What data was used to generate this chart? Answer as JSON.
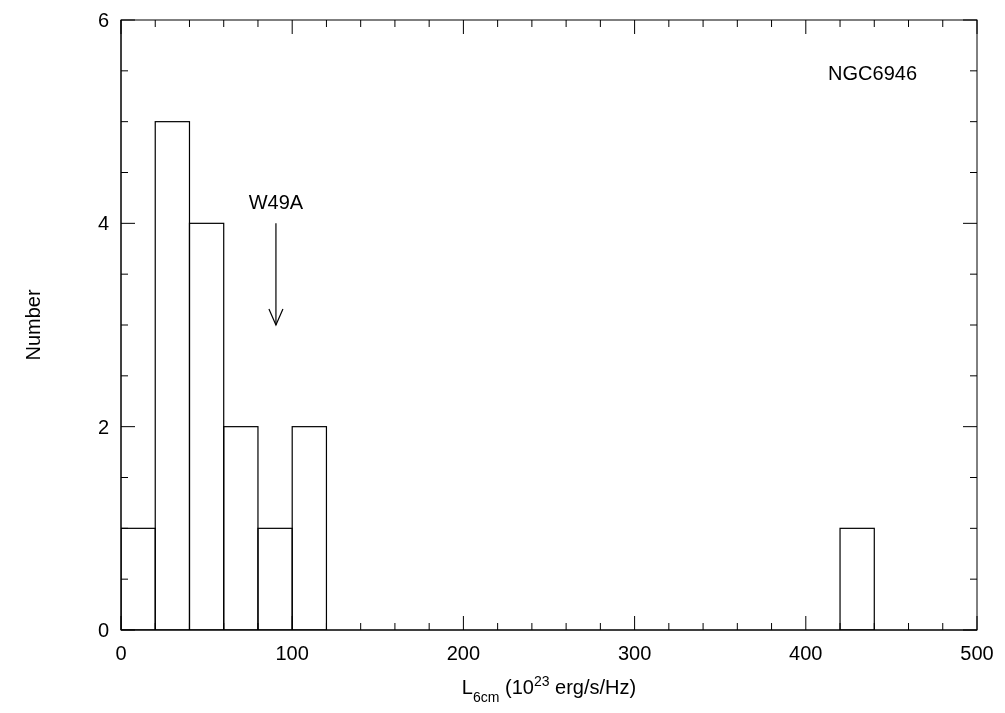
{
  "chart_data": {
    "type": "histogram",
    "bins": [
      0,
      20,
      40,
      60,
      80,
      100,
      120,
      140,
      160,
      180,
      200,
      220,
      240,
      260,
      280,
      300,
      320,
      340,
      360,
      380,
      400,
      420,
      440
    ],
    "values": [
      1,
      5,
      4,
      2,
      1,
      2,
      0,
      0,
      0,
      0,
      0,
      0,
      0,
      0,
      0,
      0,
      0,
      0,
      0,
      0,
      0,
      1
    ],
    "color": "#000000",
    "xlabel": "L$_{6cm}$ (10$^{23}$ erg/s/Hz)",
    "ylabel": "Number",
    "xlim": [
      0,
      500
    ],
    "ylim": [
      0,
      6
    ],
    "xticks": [
      0,
      {
        "value": 20,
        "label": null
      },
      {
        "value": 40,
        "label": null
      },
      {
        "value": 60,
        "label": null
      },
      {
        "value": 80,
        "label": null
      },
      100,
      {
        "value": 120,
        "label": null
      },
      {
        "value": 140,
        "label": null
      },
      {
        "value": 160,
        "label": null
      },
      {
        "value": 180,
        "label": null
      },
      200,
      {
        "value": 220,
        "label": null
      },
      {
        "value": 240,
        "label": null
      },
      {
        "value": 260,
        "label": null
      },
      {
        "value": 280,
        "label": null
      },
      300,
      {
        "value": 320,
        "label": null
      },
      {
        "value": 340,
        "label": null
      },
      {
        "value": 360,
        "label": null
      },
      {
        "value": 380,
        "label": null
      },
      400,
      {
        "value": 420,
        "label": null
      },
      {
        "value": 440,
        "label": null
      },
      {
        "value": 460,
        "label": null
      },
      {
        "value": 480,
        "label": null
      },
      500
    ],
    "yticks": [
      0,
      {
        "value": 0.5,
        "label": null
      },
      {
        "value": 1,
        "label": null
      },
      {
        "value": 1.5,
        "label": null
      },
      2,
      {
        "value": 2.5,
        "label": null
      },
      {
        "value": 3,
        "label": null
      },
      {
        "value": 3.5,
        "label": null
      },
      4,
      {
        "value": 4.5,
        "label": null
      },
      {
        "value": 5,
        "label": null
      },
      {
        "value": 5.5,
        "label": null
      },
      6
    ],
    "annotations": [
      "NGC6946",
      "W49A"
    ],
    "grid": false,
    "legend": false
  }
}
